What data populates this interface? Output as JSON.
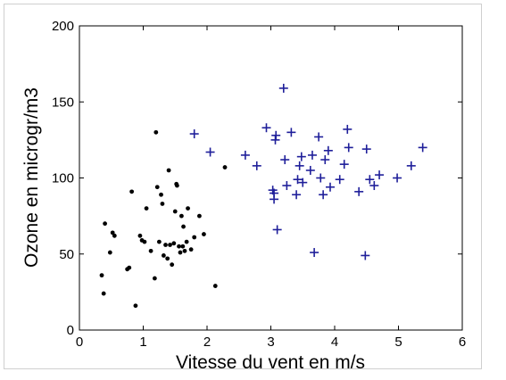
{
  "chart_data": {
    "type": "scatter",
    "title": "",
    "xlabel": "Vitesse du vent en m/s",
    "ylabel": "Ozone en microgr/m3",
    "xlim": [
      0,
      6
    ],
    "ylim": [
      0,
      200
    ],
    "xticks": [
      "0",
      "1",
      "2",
      "3",
      "4",
      "5",
      "6"
    ],
    "yticks": [
      "0",
      "50",
      "100",
      "150",
      "200"
    ],
    "grid": false,
    "legend": "none",
    "series": [
      {
        "marker": "dot",
        "color": "#000000",
        "points": [
          [
            0.35,
            36
          ],
          [
            0.38,
            24
          ],
          [
            0.4,
            70
          ],
          [
            0.48,
            51
          ],
          [
            0.52,
            64
          ],
          [
            0.55,
            62
          ],
          [
            0.75,
            40
          ],
          [
            0.78,
            41
          ],
          [
            0.82,
            91
          ],
          [
            0.88,
            16
          ],
          [
            0.95,
            62
          ],
          [
            0.98,
            59
          ],
          [
            1.02,
            58
          ],
          [
            1.05,
            80
          ],
          [
            1.12,
            52
          ],
          [
            1.18,
            34
          ],
          [
            1.2,
            130
          ],
          [
            1.22,
            94
          ],
          [
            1.25,
            58
          ],
          [
            1.28,
            89
          ],
          [
            1.3,
            83
          ],
          [
            1.32,
            49
          ],
          [
            1.35,
            56
          ],
          [
            1.38,
            47
          ],
          [
            1.4,
            105
          ],
          [
            1.42,
            56
          ],
          [
            1.45,
            43
          ],
          [
            1.48,
            57
          ],
          [
            1.5,
            78
          ],
          [
            1.52,
            96
          ],
          [
            1.53,
            95
          ],
          [
            1.56,
            55
          ],
          [
            1.58,
            51
          ],
          [
            1.6,
            75
          ],
          [
            1.62,
            55
          ],
          [
            1.63,
            68
          ],
          [
            1.65,
            52
          ],
          [
            1.68,
            58
          ],
          [
            1.7,
            80
          ],
          [
            1.75,
            53
          ],
          [
            1.8,
            61
          ],
          [
            1.88,
            75
          ],
          [
            1.95,
            63
          ],
          [
            2.13,
            29
          ],
          [
            2.28,
            107
          ]
        ]
      },
      {
        "marker": "plus",
        "color": "#1f1f9a",
        "points": [
          [
            1.8,
            129
          ],
          [
            2.05,
            117
          ],
          [
            2.6,
            115
          ],
          [
            2.78,
            108
          ],
          [
            2.93,
            133
          ],
          [
            3.03,
            92
          ],
          [
            3.05,
            86
          ],
          [
            3.05,
            90
          ],
          [
            3.07,
            125
          ],
          [
            3.08,
            128
          ],
          [
            3.1,
            66
          ],
          [
            3.2,
            159
          ],
          [
            3.22,
            112
          ],
          [
            3.25,
            95
          ],
          [
            3.32,
            130
          ],
          [
            3.4,
            89
          ],
          [
            3.42,
            99
          ],
          [
            3.45,
            108
          ],
          [
            3.48,
            114
          ],
          [
            3.5,
            97
          ],
          [
            3.62,
            105
          ],
          [
            3.65,
            115
          ],
          [
            3.68,
            51
          ],
          [
            3.75,
            127
          ],
          [
            3.78,
            100
          ],
          [
            3.82,
            89
          ],
          [
            3.85,
            112
          ],
          [
            3.9,
            118
          ],
          [
            3.93,
            94
          ],
          [
            4.08,
            99
          ],
          [
            4.15,
            109
          ],
          [
            4.2,
            132
          ],
          [
            4.22,
            120
          ],
          [
            4.38,
            91
          ],
          [
            4.48,
            49
          ],
          [
            4.5,
            119
          ],
          [
            4.55,
            99
          ],
          [
            4.62,
            95
          ],
          [
            4.7,
            102
          ],
          [
            4.98,
            100
          ],
          [
            5.2,
            108
          ],
          [
            5.38,
            120
          ]
        ]
      }
    ]
  }
}
